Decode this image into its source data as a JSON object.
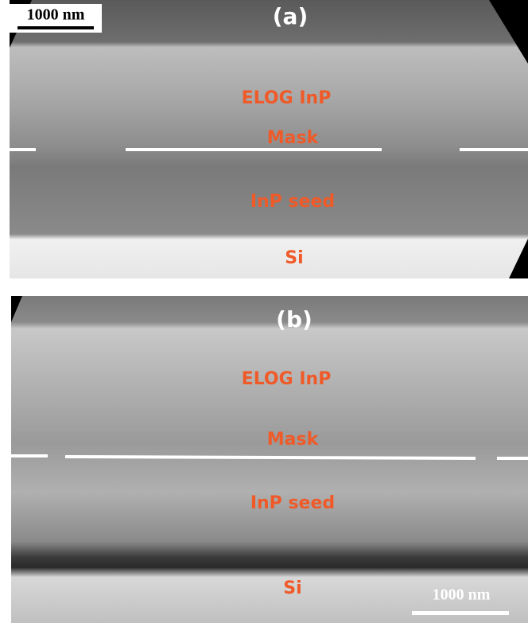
{
  "panels": [
    {
      "label": "(a)",
      "scale_bar": "1000 nm",
      "layers": [
        "ELOG InP",
        "Mask",
        "InP seed",
        "Si"
      ]
    },
    {
      "label": "(b)",
      "scale_bar": "1000 nm",
      "layers": [
        "ELOG InP",
        "Mask",
        "InP seed",
        "Si"
      ]
    }
  ]
}
